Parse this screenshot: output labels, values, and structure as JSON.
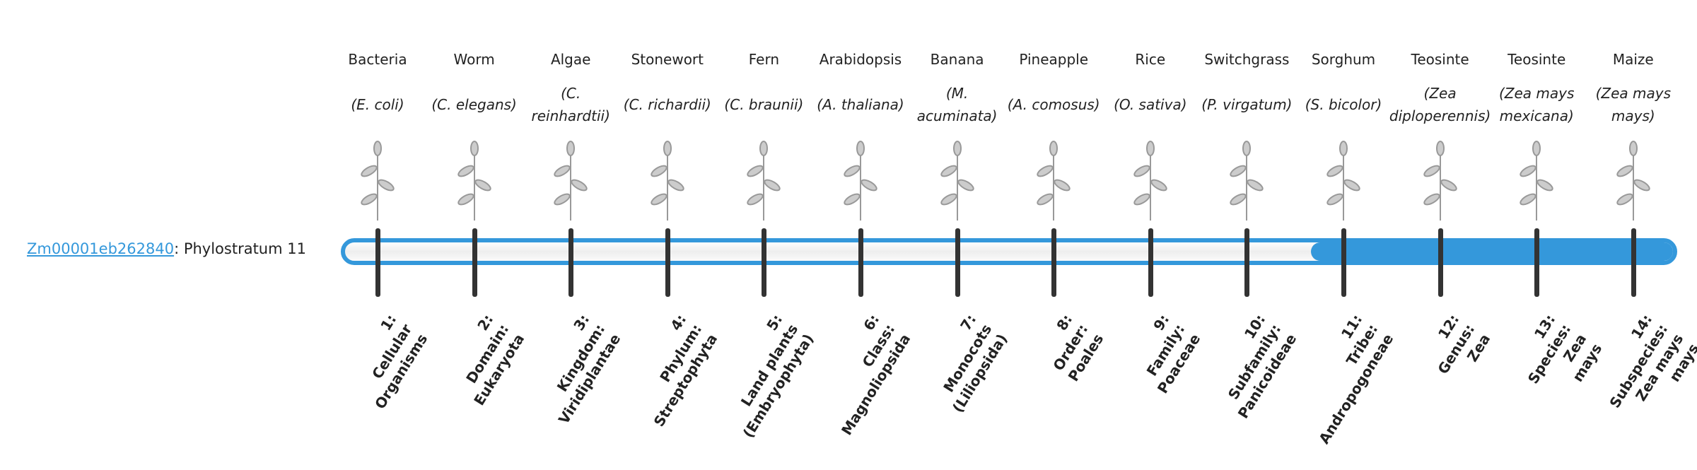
{
  "gene": {
    "id": "Zm00001eb262840",
    "suffix": ": Phylostratum 11"
  },
  "colors": {
    "accent": "#3498db",
    "tick": "#333333"
  },
  "current_stratum": 11,
  "strata": [
    {
      "common": "Bacteria",
      "sci": "(E. coli)",
      "icon": "bacteria-illustration",
      "label": "1:\nCellular\nOrganisms"
    },
    {
      "common": "Worm",
      "sci": "(C. elegans)",
      "icon": "worm-illustration",
      "label": "2:\nDomain:\nEukaryota"
    },
    {
      "common": "Algae",
      "sci": "(C. reinhardtii)",
      "icon": "algae-illustration",
      "label": "3:\nKingdom:\nViridiplantae"
    },
    {
      "common": "Stonewort",
      "sci": "(C. richardii)",
      "icon": "stonewort-illustration",
      "label": "4:\nPhylum:\nStreptophyta"
    },
    {
      "common": "Fern",
      "sci": "(C. braunii)",
      "icon": "fern-illustration",
      "label": "5:\nLand plants\n(Embryophyta)"
    },
    {
      "common": "Arabidopsis",
      "sci": "(A. thaliana)",
      "icon": "arabidopsis-illustration",
      "label": "6:\nClass:\nMagnoliopsida"
    },
    {
      "common": "Banana",
      "sci": "(M. acuminata)",
      "icon": "banana-illustration",
      "label": "7:\nMonocots\n(Liliopsida)"
    },
    {
      "common": "Pineapple",
      "sci": "(A. comosus)",
      "icon": "pineapple-illustration",
      "label": "8:\nOrder:\nPoales"
    },
    {
      "common": "Rice",
      "sci": "(O. sativa)",
      "icon": "rice-illustration",
      "label": "9:\nFamily:\nPoaceae"
    },
    {
      "common": "Switchgrass",
      "sci": "(P. virgatum)",
      "icon": "switchgrass-illustration",
      "label": "10:\nSubfamily:\nPanicoideae"
    },
    {
      "common": "Sorghum",
      "sci": "(S. bicolor)",
      "icon": "sorghum-illustration",
      "label": "11:\nTribe:\nAndropogoneae"
    },
    {
      "common": "Teosinte",
      "sci": "(Zea diploperennis)",
      "icon": "teosinte-illustration",
      "label": "12:\nGenus:\nZea"
    },
    {
      "common": "Teosinte",
      "sci": "(Zea mays mexicana)",
      "icon": "teosinte-illustration",
      "label": "13:\nSpecies:\nZea\nmays"
    },
    {
      "common": "Maize",
      "sci": "(Zea mays mays)",
      "icon": "maize-illustration",
      "label": "14:\nSubspecies:\nZea mays\nmays"
    }
  ]
}
